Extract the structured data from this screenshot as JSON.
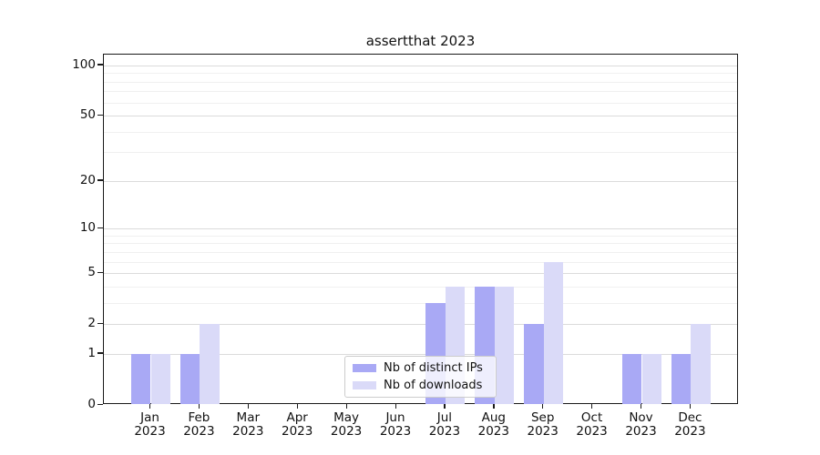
{
  "title": "assertthat 2023",
  "chart_data": {
    "type": "bar",
    "title": "assertthat 2023",
    "categories": [
      "Jan",
      "Feb",
      "Mar",
      "Apr",
      "May",
      "Jun",
      "Jul",
      "Aug",
      "Sep",
      "Oct",
      "Nov",
      "Dec"
    ],
    "category_year": "2023",
    "series": [
      {
        "name": "Nb of distinct IPs",
        "color": "#a9a9f5",
        "values": [
          1,
          1,
          0,
          0,
          0,
          0,
          3,
          4,
          2,
          0,
          1,
          1
        ]
      },
      {
        "name": "Nb of downloads",
        "color": "#dadaf8",
        "values": [
          1,
          2,
          0,
          0,
          0,
          0,
          4,
          4,
          6,
          0,
          1,
          2
        ]
      }
    ],
    "yscale": "log1p",
    "yticks_labeled": [
      0,
      1,
      2,
      5,
      10,
      20,
      50,
      100
    ],
    "yticks_minor": [
      3,
      4,
      6,
      7,
      8,
      9,
      30,
      40,
      60,
      70,
      80,
      90
    ],
    "ylim": [
      0,
      115
    ],
    "grid": "horizontal",
    "legend_position": "lower center inside",
    "colors": {
      "distinct_ips": "#a9a9f5",
      "downloads": "#dadaf8",
      "grid_major": "#dbdbdb",
      "grid_minor": "#f0f0f0",
      "spine": "#1a1a1a"
    }
  },
  "legend": {
    "entries": [
      {
        "label": "Nb of distinct IPs"
      },
      {
        "label": "Nb of downloads"
      }
    ]
  }
}
